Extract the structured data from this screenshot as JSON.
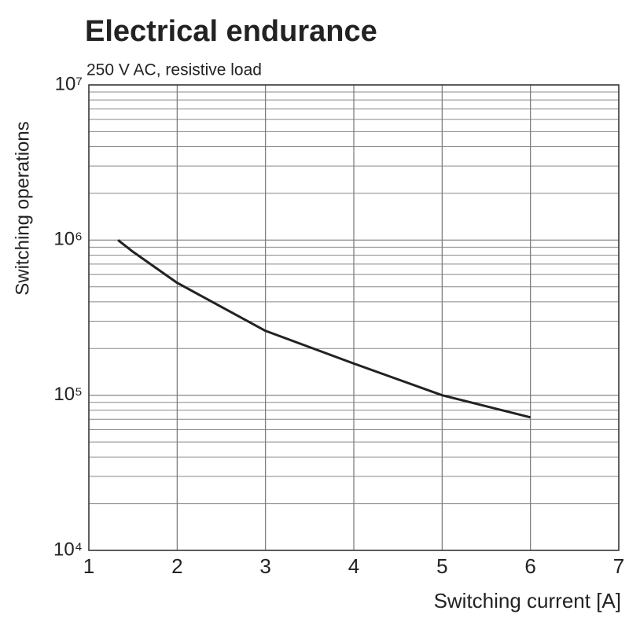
{
  "chart_data": {
    "type": "line",
    "title": "Electrical endurance",
    "subtitle": "250 V AC, resistive load",
    "x_label": "Switching current [A]",
    "y_label": "Switching operations",
    "x": [
      1.33,
      1.5,
      2,
      3,
      4,
      5,
      6
    ],
    "series": [
      {
        "color": "#222222",
        "values": [
          1000000,
          840000,
          530000,
          260000,
          160000,
          100000,
          72000
        ]
      }
    ],
    "xlim": [
      1,
      7
    ],
    "xticks": [
      1,
      2,
      3,
      4,
      5,
      6,
      7
    ],
    "ylim": [
      10000,
      10000000
    ],
    "yticks": [
      {
        "value": 10000,
        "label": "10⁴"
      },
      {
        "value": 100000,
        "label": "10⁵"
      },
      {
        "value": 1000000,
        "label": "10⁶"
      },
      {
        "value": 10000000,
        "label": "10⁷"
      }
    ],
    "log_y": true,
    "grid": true,
    "minor_grid": true
  }
}
